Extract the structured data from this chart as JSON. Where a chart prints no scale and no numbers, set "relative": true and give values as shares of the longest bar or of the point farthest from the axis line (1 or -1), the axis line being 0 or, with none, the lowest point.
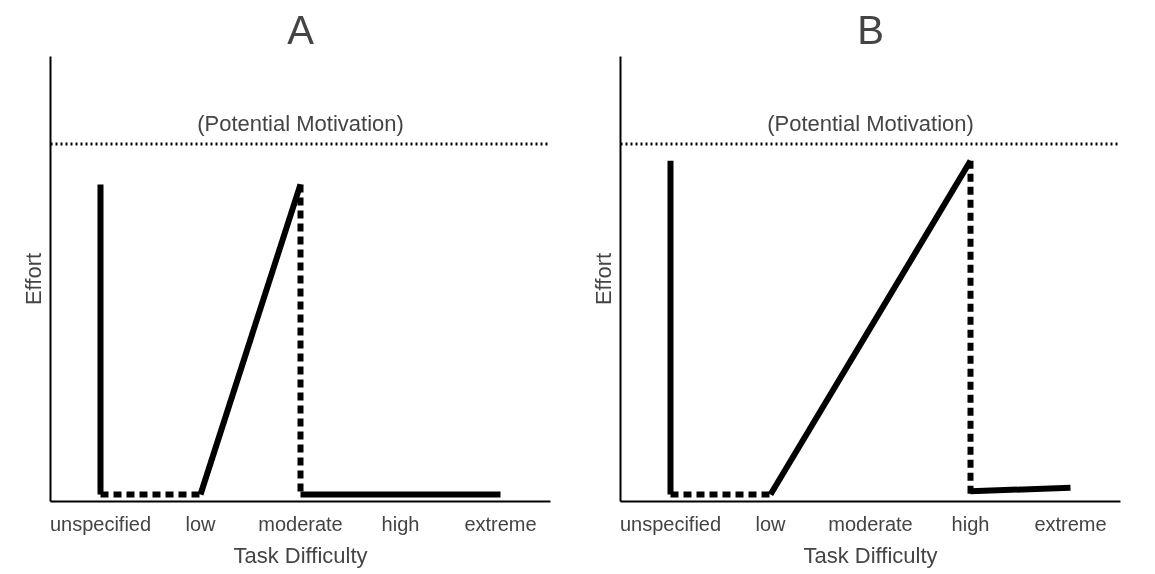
{
  "chart_data": [
    {
      "type": "line",
      "title": "A",
      "xlabel": "Task Difficulty",
      "ylabel": "Effort",
      "relative": true,
      "grid": false,
      "tick_labels": "x",
      "categories": [
        "unspecified",
        "low",
        "moderate",
        "high",
        "extreme"
      ],
      "series": [
        {
          "color": "#000000",
          "line_style": "solid",
          "x": [
            "unspecified",
            "unspecified"
          ],
          "values": [
            1.0,
            0
          ]
        },
        {
          "color": "#000000",
          "line_style": "dashed",
          "x": [
            "unspecified",
            "low"
          ],
          "values": [
            0,
            0
          ]
        },
        {
          "color": "#000000",
          "line_style": "solid",
          "x": [
            "low",
            "moderate"
          ],
          "values": [
            0,
            1
          ]
        },
        {
          "color": "#000000",
          "line_style": "dashed",
          "x": [
            "moderate",
            "moderate"
          ],
          "values": [
            1,
            0
          ]
        },
        {
          "color": "#000000",
          "line_style": "solid",
          "x": [
            "moderate",
            "extreme"
          ],
          "values": [
            0,
            0
          ]
        }
      ],
      "ref_lines": [
        {
          "axis": "y",
          "value": 1.13,
          "label": "(Potential Motivation)",
          "line_style": "dotted",
          "color": "#000000"
        }
      ]
    },
    {
      "type": "line",
      "title": "B",
      "xlabel": "Task Difficulty",
      "ylabel": "Effort",
      "relative": true,
      "grid": false,
      "tick_labels": "x",
      "categories": [
        "unspecified",
        "low",
        "moderate",
        "high",
        "extreme"
      ],
      "series": [
        {
          "color": "#000000",
          "line_style": "solid",
          "x": [
            "unspecified",
            "unspecified"
          ],
          "values": [
            1.0,
            0
          ]
        },
        {
          "color": "#000000",
          "line_style": "dashed",
          "x": [
            "unspecified",
            "low"
          ],
          "values": [
            0,
            0
          ]
        },
        {
          "color": "#000000",
          "line_style": "solid",
          "x": [
            "low",
            "high"
          ],
          "values": [
            0,
            1
          ]
        },
        {
          "color": "#000000",
          "line_style": "dashed",
          "x": [
            "high",
            "high"
          ],
          "values": [
            1,
            0
          ]
        },
        {
          "color": "#000000",
          "line_style": "solid",
          "x": [
            "high",
            "extreme"
          ],
          "values": [
            0.01,
            0.02
          ]
        }
      ],
      "ref_lines": [
        {
          "axis": "y",
          "value": 1.05,
          "label": "(Potential Motivation)",
          "line_style": "dotted",
          "color": "#000000"
        }
      ]
    }
  ]
}
